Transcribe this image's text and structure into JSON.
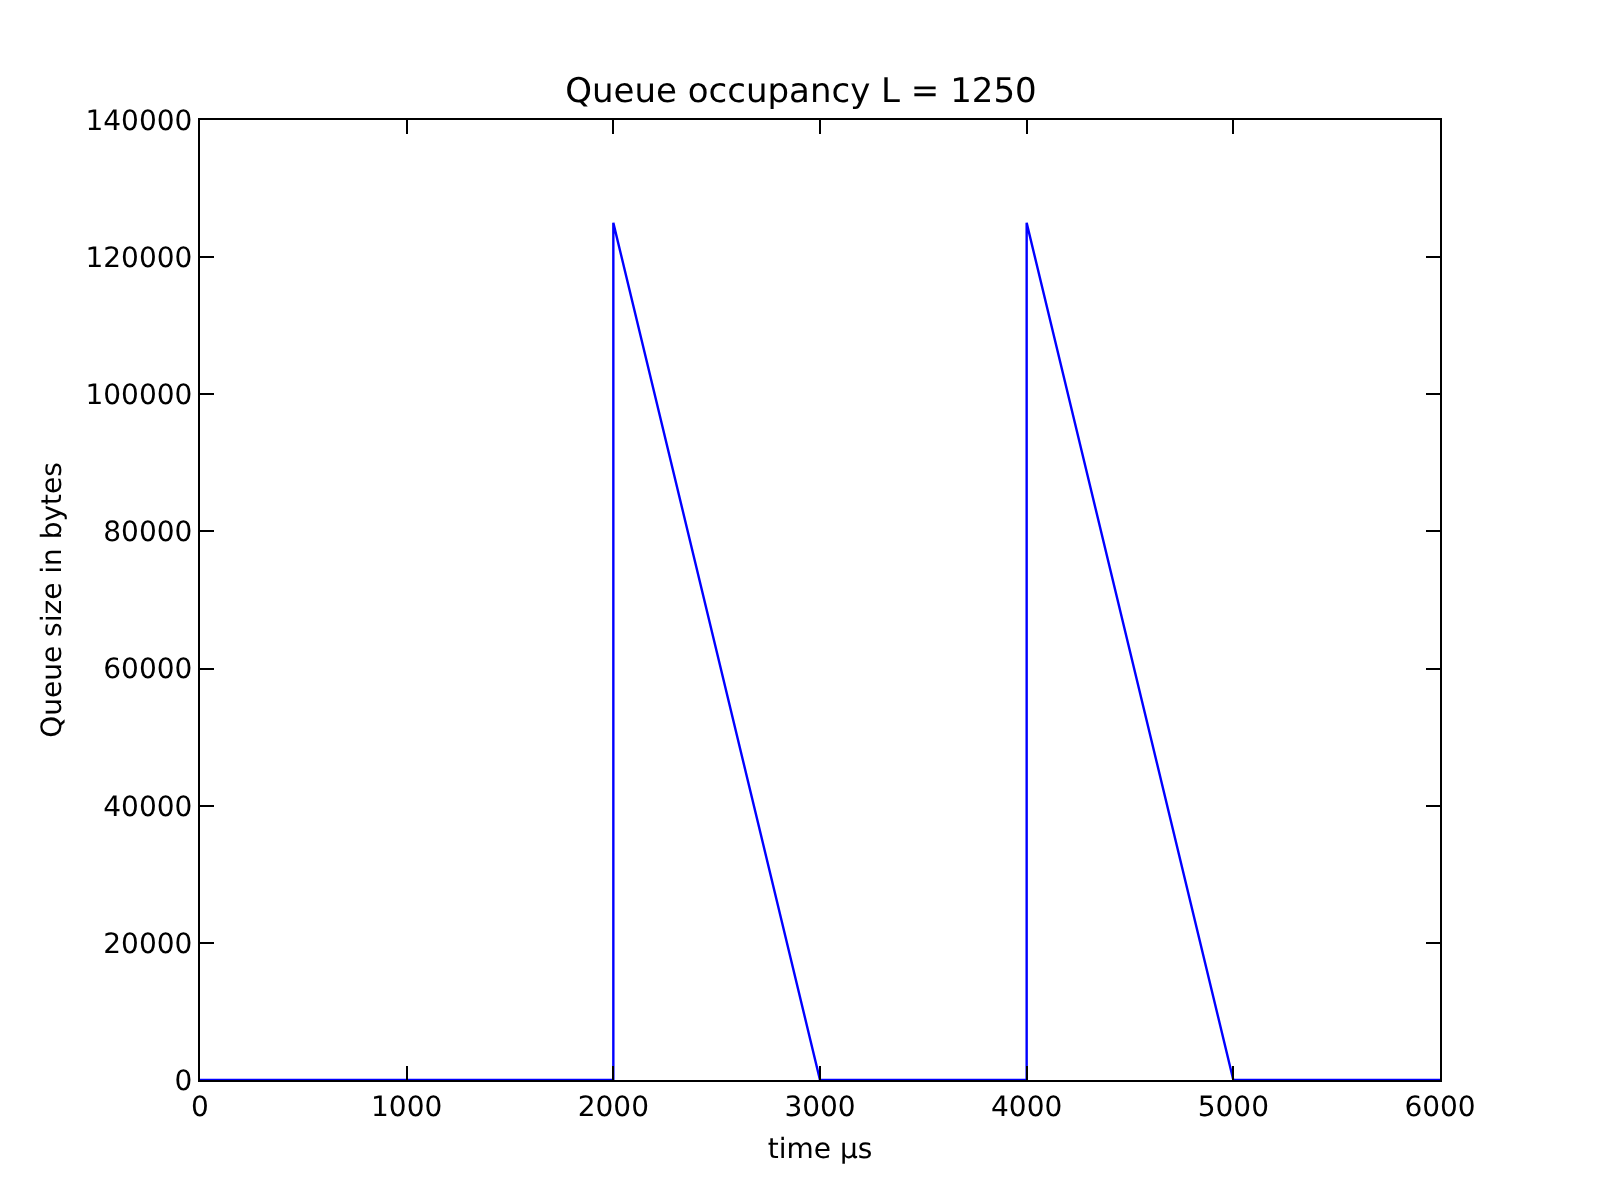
{
  "chart_data": {
    "type": "line",
    "title": "Queue occupancy L = 1250",
    "xlabel": "time μs",
    "ylabel": "Queue size in bytes",
    "x": [
      0,
      2000,
      2000,
      3000,
      4000,
      4000,
      5000,
      6000
    ],
    "series": [
      {
        "color": "#0000ff",
        "values": [
          0,
          0,
          125000,
          0,
          0,
          125000,
          0,
          0
        ]
      }
    ],
    "xlim": [
      0,
      6000
    ],
    "xticks": [
      0,
      1000,
      2000,
      3000,
      4000,
      5000,
      6000
    ],
    "ylim": [
      0,
      140000
    ],
    "yticks": [
      0,
      20000,
      40000,
      60000,
      80000,
      100000,
      120000,
      140000
    ],
    "marker": "none",
    "line_style": "solid"
  }
}
